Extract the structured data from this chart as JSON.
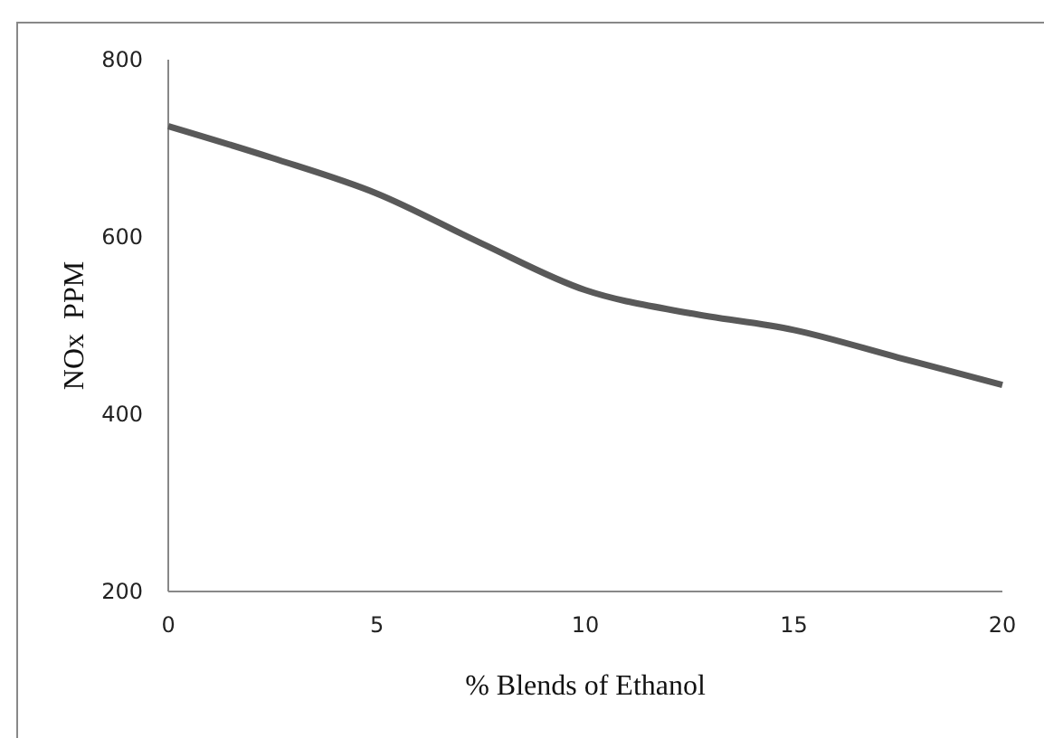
{
  "chart_data": {
    "type": "line",
    "xlabel": "% Blends of Ethanol",
    "ylabel": "NOx  PPM",
    "x": [
      0,
      2.5,
      5,
      7.5,
      10,
      12.5,
      15,
      17.5,
      20
    ],
    "series": [
      {
        "color": "#595959",
        "values": [
          725,
          689,
          649,
          593,
          540,
          514,
          495,
          464,
          433
        ]
      }
    ],
    "xlim": [
      0,
      20
    ],
    "xticks": [
      0,
      5,
      10,
      15,
      20
    ],
    "ylim": [
      200,
      800
    ],
    "yticks": [
      200,
      400,
      600,
      800
    ],
    "marker": "none",
    "line_style": "solid"
  }
}
